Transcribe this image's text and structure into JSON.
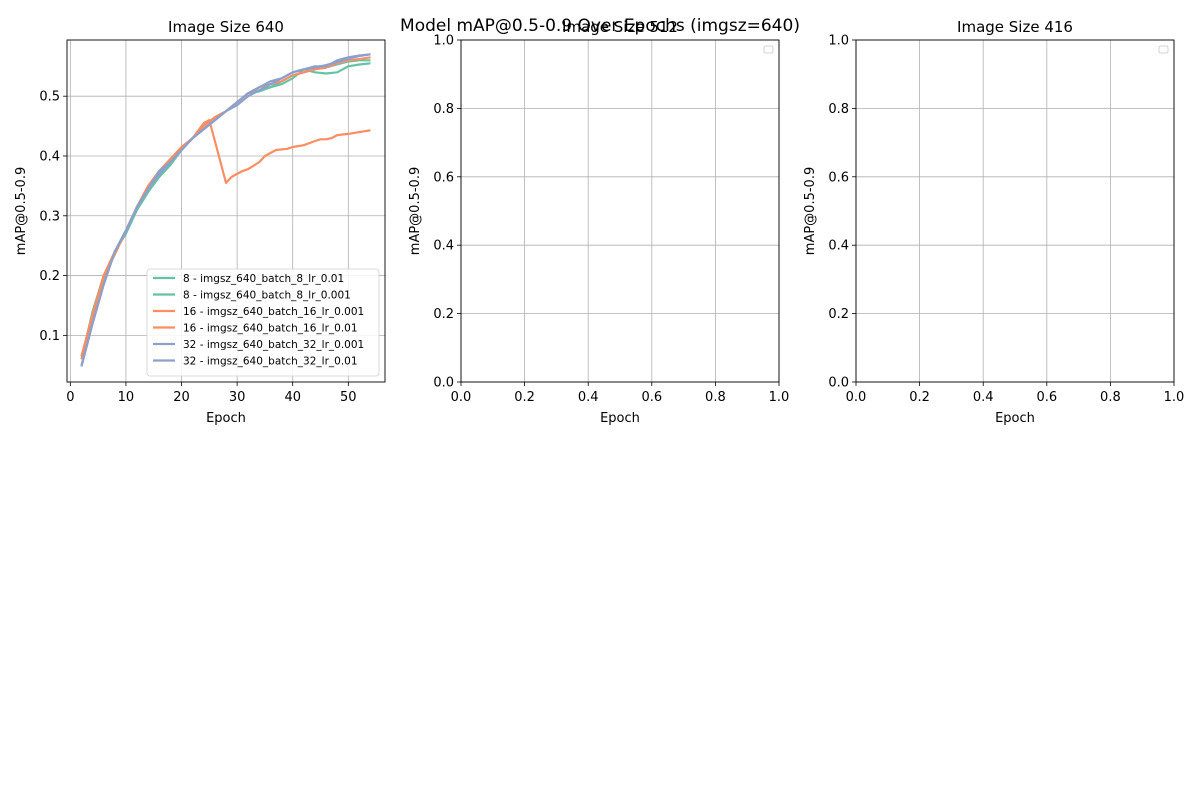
{
  "figure": {
    "title": "Model mAP@0.5-0.9 Over Epochs (imgsz=640)"
  },
  "palette": {
    "green": "#66c2a5",
    "orange": "#fc8d62",
    "blue": "#8da0cb",
    "grid": "#b0b0b0"
  },
  "chart_data": [
    {
      "type": "line",
      "title": "Image Size 640",
      "xlabel": "Epoch",
      "ylabel": "mAP@0.5-0.9",
      "xlim": [
        -0.6,
        56.6
      ],
      "ylim": [
        0.022,
        0.594
      ],
      "xticks": [
        0,
        10,
        20,
        30,
        40,
        50
      ],
      "yticks": [
        0.1,
        0.2,
        0.3,
        0.4,
        0.5
      ],
      "grid": true,
      "legend": "lower-right",
      "series": [
        {
          "name": "8 - imgsz_640_batch_8_lr_0.01",
          "color": "#66c2a5",
          "x": [
            2,
            4,
            6,
            8,
            10,
            12,
            14,
            16,
            18,
            20,
            22,
            24,
            26,
            28,
            30,
            32,
            34,
            36,
            38,
            40,
            42,
            44,
            46,
            48,
            50,
            52,
            54
          ],
          "y": [
            0.065,
            0.135,
            0.195,
            0.24,
            0.27,
            0.31,
            0.34,
            0.37,
            0.39,
            0.41,
            0.43,
            0.445,
            0.46,
            0.475,
            0.49,
            0.505,
            0.508,
            0.515,
            0.52,
            0.53,
            0.545,
            0.54,
            0.538,
            0.54,
            0.55,
            0.553,
            0.555
          ]
        },
        {
          "name": "8 - imgsz_640_batch_8_lr_0.001",
          "color": "#66c2a5",
          "x": [
            2,
            4,
            6,
            8,
            10,
            12,
            14,
            16,
            18,
            20,
            22,
            24,
            26,
            28,
            30,
            32,
            34,
            36,
            38,
            40,
            42,
            44,
            46,
            48,
            50,
            52,
            54
          ],
          "y": [
            0.06,
            0.14,
            0.2,
            0.24,
            0.275,
            0.31,
            0.34,
            0.365,
            0.385,
            0.41,
            0.43,
            0.445,
            0.46,
            0.475,
            0.49,
            0.505,
            0.51,
            0.515,
            0.525,
            0.535,
            0.54,
            0.545,
            0.548,
            0.553,
            0.558,
            0.56,
            0.56
          ]
        },
        {
          "name": "16 - imgsz_640_batch_16_lr_0.001",
          "color": "#fc8d62",
          "x": [
            2,
            4,
            6,
            8,
            10,
            12,
            14,
            16,
            18,
            20,
            22,
            24,
            26,
            28,
            30,
            32,
            34,
            36,
            38,
            40,
            42,
            44,
            46,
            48,
            50,
            52,
            54
          ],
          "y": [
            0.06,
            0.13,
            0.2,
            0.24,
            0.275,
            0.315,
            0.35,
            0.375,
            0.39,
            0.41,
            0.43,
            0.45,
            0.465,
            0.475,
            0.49,
            0.505,
            0.515,
            0.52,
            0.525,
            0.535,
            0.54,
            0.545,
            0.548,
            0.555,
            0.56,
            0.562,
            0.565
          ]
        },
        {
          "name": "16 - imgsz_640_batch_16_lr_0.01",
          "color": "#fc8d62",
          "x": [
            2,
            4,
            6,
            8,
            10,
            12,
            14,
            16,
            18,
            19,
            20,
            22,
            24,
            25,
            26,
            28,
            29,
            30,
            31,
            32,
            34,
            35,
            37,
            39,
            40,
            42,
            44,
            45,
            46,
            47,
            48,
            50,
            52,
            54
          ],
          "y": [
            0.065,
            0.135,
            0.2,
            0.235,
            0.275,
            0.315,
            0.35,
            0.375,
            0.395,
            0.405,
            0.415,
            0.43,
            0.455,
            0.46,
            0.425,
            0.355,
            0.365,
            0.37,
            0.375,
            0.378,
            0.39,
            0.4,
            0.41,
            0.412,
            0.415,
            0.418,
            0.425,
            0.428,
            0.428,
            0.43,
            0.435,
            0.437,
            0.44,
            0.443
          ]
        },
        {
          "name": "32 - imgsz_640_batch_32_lr_0.001",
          "color": "#8da0cb",
          "x": [
            2,
            4,
            6,
            8,
            10,
            12,
            14,
            16,
            18,
            20,
            22,
            24,
            26,
            28,
            30,
            32,
            34,
            36,
            38,
            40,
            42,
            44,
            46,
            48,
            50,
            52,
            54
          ],
          "y": [
            0.05,
            0.12,
            0.185,
            0.24,
            0.275,
            0.315,
            0.345,
            0.37,
            0.39,
            0.41,
            0.43,
            0.445,
            0.46,
            0.475,
            0.49,
            0.505,
            0.515,
            0.525,
            0.53,
            0.54,
            0.545,
            0.548,
            0.552,
            0.557,
            0.563,
            0.567,
            0.57
          ]
        },
        {
          "name": "32 - imgsz_640_batch_32_lr_0.01",
          "color": "#8da0cb",
          "x": [
            2,
            4,
            6,
            8,
            10,
            12,
            14,
            16,
            18,
            20,
            22,
            24,
            26,
            28,
            30,
            32,
            34,
            36,
            38,
            40,
            42,
            44,
            46,
            48,
            50,
            52,
            54
          ],
          "y": [
            0.048,
            0.12,
            0.185,
            0.24,
            0.275,
            0.315,
            0.345,
            0.375,
            0.39,
            0.41,
            0.43,
            0.445,
            0.46,
            0.475,
            0.485,
            0.5,
            0.51,
            0.52,
            0.53,
            0.54,
            0.545,
            0.55,
            0.55,
            0.56,
            0.565,
            0.568,
            0.57
          ]
        }
      ]
    },
    {
      "type": "line",
      "title": "Image Size 512",
      "xlabel": "Epoch",
      "ylabel": "mAP@0.5-0.9",
      "xlim": [
        0,
        1
      ],
      "ylim": [
        0,
        1
      ],
      "xticks": [
        0.0,
        0.2,
        0.4,
        0.6,
        0.8,
        1.0
      ],
      "yticks": [
        0.0,
        0.2,
        0.4,
        0.6,
        0.8,
        1.0
      ],
      "grid": true,
      "legend": "top-right",
      "series": []
    },
    {
      "type": "line",
      "title": "Image Size 416",
      "xlabel": "Epoch",
      "ylabel": "mAP@0.5-0.9",
      "xlim": [
        0,
        1
      ],
      "ylim": [
        0,
        1
      ],
      "xticks": [
        0.0,
        0.2,
        0.4,
        0.6,
        0.8,
        1.0
      ],
      "yticks": [
        0.0,
        0.2,
        0.4,
        0.6,
        0.8,
        1.0
      ],
      "grid": true,
      "legend": "top-right",
      "series": []
    }
  ]
}
